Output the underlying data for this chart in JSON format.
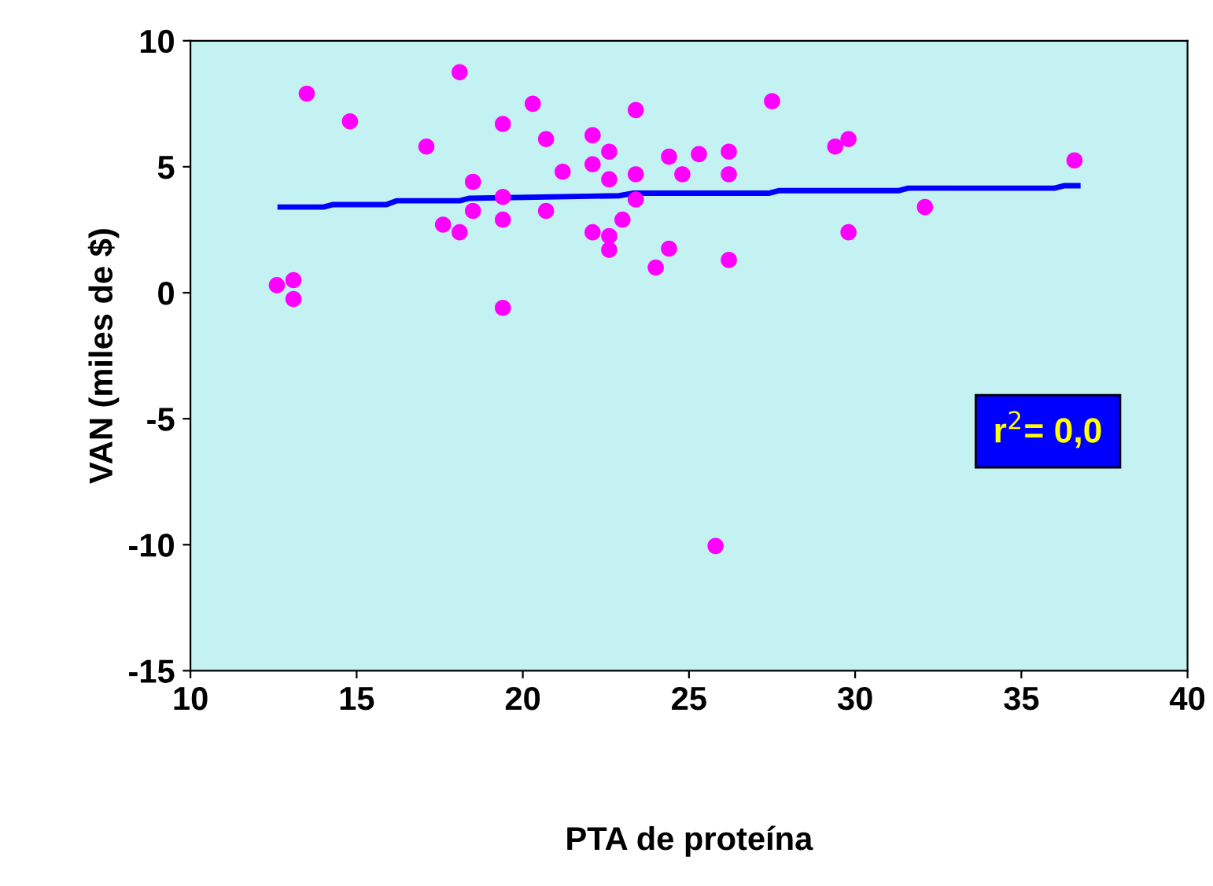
{
  "chart_data": {
    "type": "scatter",
    "xlabel": "PTA de proteína",
    "ylabel": "VAN (miles de $)",
    "xlim": [
      10,
      40
    ],
    "xticks": [
      10,
      15,
      20,
      25,
      30,
      35,
      40
    ],
    "ylim": [
      -15,
      10
    ],
    "yticks": [
      -15,
      -10,
      -5,
      0,
      5,
      10
    ],
    "grid": false,
    "legend": false,
    "marker": "circle",
    "annotations": [
      "r$^{2}$= 0,0"
    ],
    "series": [
      {
        "color": "#ff00ff",
        "x": [
          12.6,
          13.1,
          13.1,
          13.5,
          14.8,
          17.1,
          17.6,
          18.1,
          18.1,
          18.5,
          18.5,
          19.4,
          19.4,
          19.4,
          19.4,
          20.3,
          20.7,
          20.7,
          21.2,
          22.1,
          22.1,
          22.1,
          22.6,
          22.6,
          22.6,
          22.6,
          23.0,
          23.4,
          23.4,
          23.4,
          24.0,
          24.4,
          24.4,
          24.8,
          25.3,
          25.8,
          26.2,
          26.2,
          26.2,
          27.5,
          29.4,
          29.8,
          29.8,
          32.1,
          36.6
        ],
        "values": [
          0.3,
          0.5,
          -0.25,
          7.9,
          6.8,
          5.8,
          2.7,
          2.4,
          8.75,
          4.4,
          3.25,
          6.7,
          3.8,
          2.9,
          -0.6,
          7.5,
          6.1,
          3.25,
          4.8,
          6.25,
          5.1,
          2.4,
          5.6,
          4.5,
          2.25,
          1.7,
          2.9,
          7.25,
          4.7,
          3.7,
          1.0,
          5.4,
          1.75,
          4.7,
          5.5,
          -10.05,
          5.6,
          4.7,
          1.3,
          7.6,
          5.8,
          6.1,
          2.4,
          3.4,
          5.25
        ]
      },
      {
        "type": "line",
        "color": "#0000ff",
        "marker": "none",
        "line_style": "solid",
        "x": [
          12.7,
          14.0,
          14.3,
          15.9,
          16.2,
          18.1,
          18.4,
          22.9,
          23.3,
          27.4,
          27.7,
          31.3,
          31.6,
          36.0,
          36.3,
          36.7
        ],
        "values": [
          3.4,
          3.4,
          3.5,
          3.5,
          3.65,
          3.65,
          3.75,
          3.85,
          3.95,
          3.95,
          4.05,
          4.05,
          4.15,
          4.15,
          4.25,
          4.25
        ]
      }
    ]
  }
}
